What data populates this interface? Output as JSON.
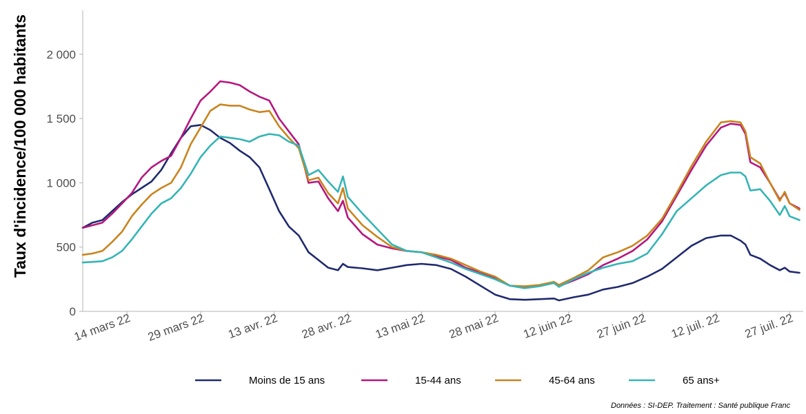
{
  "chart_data": {
    "type": "line",
    "title": "",
    "xlabel": "",
    "ylabel": "Taux d'incidence/100 000 habitants",
    "ylim": [
      0,
      2300
    ],
    "yticks": [
      {
        "value": 0,
        "label": "0"
      },
      {
        "value": 500,
        "label": "500"
      },
      {
        "value": 1000,
        "label": "1 000"
      },
      {
        "value": 1500,
        "label": "1 500"
      },
      {
        "value": 2000,
        "label": "2 000"
      }
    ],
    "xlim": [
      "2022-03-05",
      "2022-07-26"
    ],
    "xticks": [
      {
        "value": "2022-03-14",
        "label": "14 mars 22"
      },
      {
        "value": "2022-03-29",
        "label": "29 mars 22"
      },
      {
        "value": "2022-04-13",
        "label": "13 avr. 22"
      },
      {
        "value": "2022-04-28",
        "label": "28 avr. 22"
      },
      {
        "value": "2022-05-13",
        "label": "13 mai 22"
      },
      {
        "value": "2022-05-28",
        "label": "28 mai 22"
      },
      {
        "value": "2022-06-12",
        "label": "12 juin 22"
      },
      {
        "value": "2022-06-27",
        "label": "27 juin 22"
      },
      {
        "value": "2022-07-12",
        "label": "12 juil. 22"
      },
      {
        "value": "2022-07-27",
        "label": "27 juil. 22"
      }
    ],
    "grid": false,
    "legend_position": "bottom",
    "series": [
      {
        "name": "Moins de 15 ans",
        "color": "#1f2a6e",
        "points": [
          [
            "2022-03-05",
            650
          ],
          [
            "2022-03-07",
            690
          ],
          [
            "2022-03-09",
            710
          ],
          [
            "2022-03-11",
            780
          ],
          [
            "2022-03-13",
            850
          ],
          [
            "2022-03-15",
            910
          ],
          [
            "2022-03-17",
            960
          ],
          [
            "2022-03-19",
            1010
          ],
          [
            "2022-03-21",
            1100
          ],
          [
            "2022-03-23",
            1230
          ],
          [
            "2022-03-25",
            1350
          ],
          [
            "2022-03-27",
            1440
          ],
          [
            "2022-03-29",
            1450
          ],
          [
            "2022-03-31",
            1410
          ],
          [
            "2022-04-02",
            1350
          ],
          [
            "2022-04-04",
            1310
          ],
          [
            "2022-04-06",
            1250
          ],
          [
            "2022-04-08",
            1200
          ],
          [
            "2022-04-10",
            1120
          ],
          [
            "2022-04-12",
            950
          ],
          [
            "2022-04-14",
            780
          ],
          [
            "2022-04-16",
            660
          ],
          [
            "2022-04-18",
            590
          ],
          [
            "2022-04-20",
            460
          ],
          [
            "2022-04-22",
            400
          ],
          [
            "2022-04-24",
            340
          ],
          [
            "2022-04-26",
            320
          ],
          [
            "2022-04-27",
            370
          ],
          [
            "2022-04-28",
            345
          ],
          [
            "2022-05-01",
            335
          ],
          [
            "2022-05-04",
            320
          ],
          [
            "2022-05-07",
            340
          ],
          [
            "2022-05-10",
            360
          ],
          [
            "2022-05-13",
            370
          ],
          [
            "2022-05-16",
            360
          ],
          [
            "2022-05-19",
            330
          ],
          [
            "2022-05-22",
            270
          ],
          [
            "2022-05-25",
            200
          ],
          [
            "2022-05-28",
            130
          ],
          [
            "2022-05-31",
            95
          ],
          [
            "2022-06-03",
            90
          ],
          [
            "2022-06-06",
            95
          ],
          [
            "2022-06-09",
            100
          ],
          [
            "2022-06-10",
            85
          ],
          [
            "2022-06-13",
            110
          ],
          [
            "2022-06-16",
            130
          ],
          [
            "2022-06-19",
            170
          ],
          [
            "2022-06-22",
            190
          ],
          [
            "2022-06-25",
            220
          ],
          [
            "2022-06-28",
            270
          ],
          [
            "2022-07-01",
            330
          ],
          [
            "2022-07-04",
            420
          ],
          [
            "2022-07-07",
            510
          ],
          [
            "2022-07-10",
            570
          ],
          [
            "2022-07-13",
            590
          ],
          [
            "2022-07-15",
            590
          ],
          [
            "2022-07-17",
            550
          ],
          [
            "2022-07-18",
            520
          ],
          [
            "2022-07-19",
            440
          ],
          [
            "2022-07-21",
            410
          ],
          [
            "2022-07-23",
            360
          ],
          [
            "2022-07-25",
            320
          ],
          [
            "2022-07-26",
            340
          ],
          [
            "2022-07-27",
            310
          ],
          [
            "2022-07-29",
            300
          ]
        ]
      },
      {
        "name": "15-44 ans",
        "color": "#b5177e",
        "points": [
          [
            "2022-03-05",
            650
          ],
          [
            "2022-03-07",
            670
          ],
          [
            "2022-03-09",
            690
          ],
          [
            "2022-03-11",
            760
          ],
          [
            "2022-03-13",
            840
          ],
          [
            "2022-03-15",
            920
          ],
          [
            "2022-03-17",
            1040
          ],
          [
            "2022-03-19",
            1120
          ],
          [
            "2022-03-21",
            1170
          ],
          [
            "2022-03-23",
            1210
          ],
          [
            "2022-03-25",
            1350
          ],
          [
            "2022-03-27",
            1500
          ],
          [
            "2022-03-29",
            1640
          ],
          [
            "2022-03-31",
            1710
          ],
          [
            "2022-04-02",
            1790
          ],
          [
            "2022-04-04",
            1780
          ],
          [
            "2022-04-06",
            1760
          ],
          [
            "2022-04-08",
            1710
          ],
          [
            "2022-04-10",
            1670
          ],
          [
            "2022-04-12",
            1640
          ],
          [
            "2022-04-14",
            1500
          ],
          [
            "2022-04-16",
            1400
          ],
          [
            "2022-04-18",
            1300
          ],
          [
            "2022-04-20",
            1000
          ],
          [
            "2022-04-22",
            1010
          ],
          [
            "2022-04-24",
            880
          ],
          [
            "2022-04-26",
            780
          ],
          [
            "2022-04-27",
            860
          ],
          [
            "2022-04-28",
            730
          ],
          [
            "2022-05-01",
            600
          ],
          [
            "2022-05-04",
            520
          ],
          [
            "2022-05-07",
            490
          ],
          [
            "2022-05-10",
            470
          ],
          [
            "2022-05-13",
            460
          ],
          [
            "2022-05-16",
            430
          ],
          [
            "2022-05-19",
            400
          ],
          [
            "2022-05-22",
            340
          ],
          [
            "2022-05-25",
            300
          ],
          [
            "2022-05-28",
            260
          ],
          [
            "2022-05-31",
            200
          ],
          [
            "2022-06-03",
            190
          ],
          [
            "2022-06-06",
            200
          ],
          [
            "2022-06-09",
            220
          ],
          [
            "2022-06-10",
            195
          ],
          [
            "2022-06-13",
            240
          ],
          [
            "2022-06-16",
            290
          ],
          [
            "2022-06-19",
            360
          ],
          [
            "2022-06-22",
            410
          ],
          [
            "2022-06-25",
            470
          ],
          [
            "2022-06-28",
            560
          ],
          [
            "2022-07-01",
            700
          ],
          [
            "2022-07-04",
            900
          ],
          [
            "2022-07-07",
            1100
          ],
          [
            "2022-07-10",
            1290
          ],
          [
            "2022-07-13",
            1430
          ],
          [
            "2022-07-15",
            1460
          ],
          [
            "2022-07-17",
            1450
          ],
          [
            "2022-07-18",
            1380
          ],
          [
            "2022-07-19",
            1160
          ],
          [
            "2022-07-21",
            1120
          ],
          [
            "2022-07-23",
            1000
          ],
          [
            "2022-07-25",
            870
          ],
          [
            "2022-07-26",
            920
          ],
          [
            "2022-07-27",
            840
          ],
          [
            "2022-07-29",
            800
          ]
        ]
      },
      {
        "name": "45-64 ans",
        "color": "#c8841e",
        "points": [
          [
            "2022-03-05",
            440
          ],
          [
            "2022-03-07",
            450
          ],
          [
            "2022-03-09",
            470
          ],
          [
            "2022-03-11",
            540
          ],
          [
            "2022-03-13",
            620
          ],
          [
            "2022-03-15",
            740
          ],
          [
            "2022-03-17",
            830
          ],
          [
            "2022-03-19",
            910
          ],
          [
            "2022-03-21",
            960
          ],
          [
            "2022-03-23",
            1000
          ],
          [
            "2022-03-25",
            1120
          ],
          [
            "2022-03-27",
            1300
          ],
          [
            "2022-03-29",
            1430
          ],
          [
            "2022-03-31",
            1560
          ],
          [
            "2022-04-02",
            1610
          ],
          [
            "2022-04-04",
            1600
          ],
          [
            "2022-04-06",
            1600
          ],
          [
            "2022-04-08",
            1570
          ],
          [
            "2022-04-10",
            1550
          ],
          [
            "2022-04-12",
            1560
          ],
          [
            "2022-04-14",
            1440
          ],
          [
            "2022-04-16",
            1350
          ],
          [
            "2022-04-18",
            1270
          ],
          [
            "2022-04-20",
            1020
          ],
          [
            "2022-04-22",
            1040
          ],
          [
            "2022-04-24",
            920
          ],
          [
            "2022-04-26",
            840
          ],
          [
            "2022-04-27",
            960
          ],
          [
            "2022-04-28",
            800
          ],
          [
            "2022-05-01",
            670
          ],
          [
            "2022-05-04",
            580
          ],
          [
            "2022-05-07",
            500
          ],
          [
            "2022-05-10",
            470
          ],
          [
            "2022-05-13",
            460
          ],
          [
            "2022-05-16",
            440
          ],
          [
            "2022-05-19",
            410
          ],
          [
            "2022-05-22",
            360
          ],
          [
            "2022-05-25",
            310
          ],
          [
            "2022-05-28",
            270
          ],
          [
            "2022-05-31",
            200
          ],
          [
            "2022-06-03",
            195
          ],
          [
            "2022-06-06",
            205
          ],
          [
            "2022-06-09",
            230
          ],
          [
            "2022-06-10",
            205
          ],
          [
            "2022-06-13",
            260
          ],
          [
            "2022-06-16",
            320
          ],
          [
            "2022-06-19",
            420
          ],
          [
            "2022-06-22",
            460
          ],
          [
            "2022-06-25",
            510
          ],
          [
            "2022-06-28",
            590
          ],
          [
            "2022-07-01",
            720
          ],
          [
            "2022-07-04",
            920
          ],
          [
            "2022-07-07",
            1130
          ],
          [
            "2022-07-10",
            1320
          ],
          [
            "2022-07-13",
            1470
          ],
          [
            "2022-07-15",
            1480
          ],
          [
            "2022-07-17",
            1470
          ],
          [
            "2022-07-18",
            1400
          ],
          [
            "2022-07-19",
            1200
          ],
          [
            "2022-07-21",
            1150
          ],
          [
            "2022-07-23",
            1000
          ],
          [
            "2022-07-25",
            860
          ],
          [
            "2022-07-26",
            930
          ],
          [
            "2022-07-27",
            840
          ],
          [
            "2022-07-29",
            790
          ]
        ]
      },
      {
        "name": "65 ans+",
        "color": "#35b4b5",
        "points": [
          [
            "2022-03-05",
            380
          ],
          [
            "2022-03-07",
            385
          ],
          [
            "2022-03-09",
            390
          ],
          [
            "2022-03-11",
            420
          ],
          [
            "2022-03-13",
            470
          ],
          [
            "2022-03-15",
            560
          ],
          [
            "2022-03-17",
            660
          ],
          [
            "2022-03-19",
            760
          ],
          [
            "2022-03-21",
            840
          ],
          [
            "2022-03-23",
            880
          ],
          [
            "2022-03-25",
            960
          ],
          [
            "2022-03-27",
            1070
          ],
          [
            "2022-03-29",
            1200
          ],
          [
            "2022-03-31",
            1290
          ],
          [
            "2022-04-02",
            1360
          ],
          [
            "2022-04-04",
            1350
          ],
          [
            "2022-04-06",
            1340
          ],
          [
            "2022-04-08",
            1320
          ],
          [
            "2022-04-10",
            1360
          ],
          [
            "2022-04-12",
            1380
          ],
          [
            "2022-04-14",
            1370
          ],
          [
            "2022-04-16",
            1320
          ],
          [
            "2022-04-18",
            1290
          ],
          [
            "2022-04-20",
            1060
          ],
          [
            "2022-04-22",
            1100
          ],
          [
            "2022-04-24",
            1010
          ],
          [
            "2022-04-26",
            930
          ],
          [
            "2022-04-27",
            1050
          ],
          [
            "2022-04-28",
            890
          ],
          [
            "2022-05-01",
            760
          ],
          [
            "2022-05-04",
            640
          ],
          [
            "2022-05-07",
            520
          ],
          [
            "2022-05-10",
            470
          ],
          [
            "2022-05-13",
            460
          ],
          [
            "2022-05-16",
            420
          ],
          [
            "2022-05-19",
            380
          ],
          [
            "2022-05-22",
            330
          ],
          [
            "2022-05-25",
            290
          ],
          [
            "2022-05-28",
            250
          ],
          [
            "2022-05-31",
            200
          ],
          [
            "2022-06-03",
            180
          ],
          [
            "2022-06-06",
            195
          ],
          [
            "2022-06-09",
            220
          ],
          [
            "2022-06-10",
            190
          ],
          [
            "2022-06-13",
            250
          ],
          [
            "2022-06-16",
            300
          ],
          [
            "2022-06-19",
            340
          ],
          [
            "2022-06-22",
            370
          ],
          [
            "2022-06-25",
            390
          ],
          [
            "2022-06-28",
            450
          ],
          [
            "2022-07-01",
            600
          ],
          [
            "2022-07-04",
            780
          ],
          [
            "2022-07-07",
            880
          ],
          [
            "2022-07-10",
            980
          ],
          [
            "2022-07-13",
            1060
          ],
          [
            "2022-07-15",
            1080
          ],
          [
            "2022-07-17",
            1080
          ],
          [
            "2022-07-18",
            1050
          ],
          [
            "2022-07-19",
            940
          ],
          [
            "2022-07-21",
            950
          ],
          [
            "2022-07-23",
            860
          ],
          [
            "2022-07-25",
            750
          ],
          [
            "2022-07-26",
            820
          ],
          [
            "2022-07-27",
            740
          ],
          [
            "2022-07-29",
            710
          ]
        ]
      }
    ]
  },
  "source_note": "Données : SI-DEP. Traitement : Santé publique Franc"
}
